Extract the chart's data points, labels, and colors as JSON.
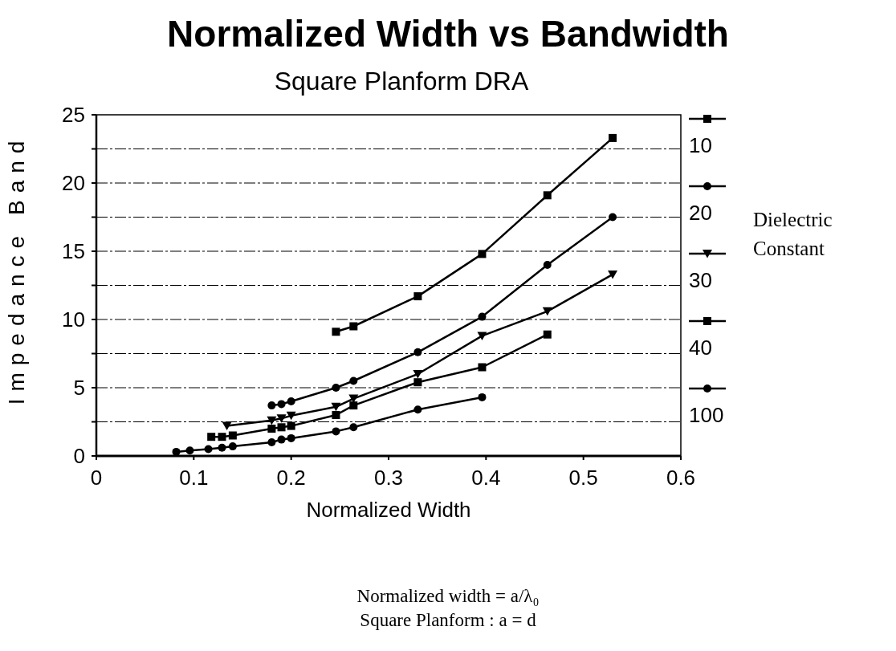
{
  "chart_data": {
    "type": "line",
    "title": "Normalized Width vs Bandwidth",
    "subtitle": "Square Planform DRA",
    "xlabel": "Normalized Width",
    "ylabel": "Impedance Band",
    "legend_title": "Dielectric Constant",
    "xlim": [
      0,
      0.6
    ],
    "xticks": [
      0,
      0.1,
      0.2,
      0.3,
      0.4,
      0.5,
      0.6
    ],
    "ylim": [
      0,
      25
    ],
    "yticks": [
      0,
      {
        "value": 2.5,
        "label": null
      },
      5,
      {
        "value": 7.5,
        "label": null
      },
      10,
      {
        "value": 12.5,
        "label": null
      },
      15,
      {
        "value": 17.5,
        "label": null
      },
      20,
      {
        "value": 22.5,
        "label": null
      },
      25
    ],
    "grid": "y",
    "legend": "right",
    "line_style": "solid",
    "annotations": [
      "Normalized width = a/λ₀",
      "Square Planform : a = d"
    ],
    "series": [
      {
        "name": "10",
        "color": "#000000",
        "marker": "square",
        "x": [
          0.246,
          0.264,
          0.33,
          0.396,
          0.463,
          0.53
        ],
        "values": [
          9.1,
          9.5,
          11.7,
          14.8,
          19.1,
          23.3
        ]
      },
      {
        "name": "20",
        "color": "#000000",
        "marker": "circle",
        "x": [
          0.18,
          0.19,
          0.2,
          0.246,
          0.264,
          0.33,
          0.396,
          0.463,
          0.53
        ],
        "values": [
          3.7,
          3.8,
          4.0,
          5.0,
          5.5,
          7.6,
          10.2,
          14.0,
          17.5
        ]
      },
      {
        "name": "30",
        "color": "#000000",
        "marker": "triangle",
        "x": [
          0.134,
          0.18,
          0.19,
          0.2,
          0.246,
          0.264,
          0.33,
          0.396,
          0.463,
          0.53
        ],
        "values": [
          2.2,
          2.6,
          2.75,
          2.95,
          3.6,
          4.2,
          6.0,
          8.8,
          10.6,
          13.3
        ]
      },
      {
        "name": "40",
        "color": "#000000",
        "marker": "square",
        "x": [
          0.118,
          0.129,
          0.14,
          0.18,
          0.19,
          0.2,
          0.246,
          0.264,
          0.33,
          0.396,
          0.463
        ],
        "values": [
          1.4,
          1.4,
          1.5,
          2.0,
          2.1,
          2.2,
          3.0,
          3.7,
          5.4,
          6.5,
          8.9
        ]
      },
      {
        "name": "100",
        "color": "#000000",
        "marker": "circle",
        "x": [
          0.082,
          0.096,
          0.115,
          0.129,
          0.14,
          0.18,
          0.19,
          0.2,
          0.246,
          0.264,
          0.33,
          0.396
        ],
        "values": [
          0.3,
          0.4,
          0.5,
          0.6,
          0.7,
          1.0,
          1.2,
          1.3,
          1.8,
          2.1,
          3.4,
          4.3
        ]
      }
    ]
  }
}
